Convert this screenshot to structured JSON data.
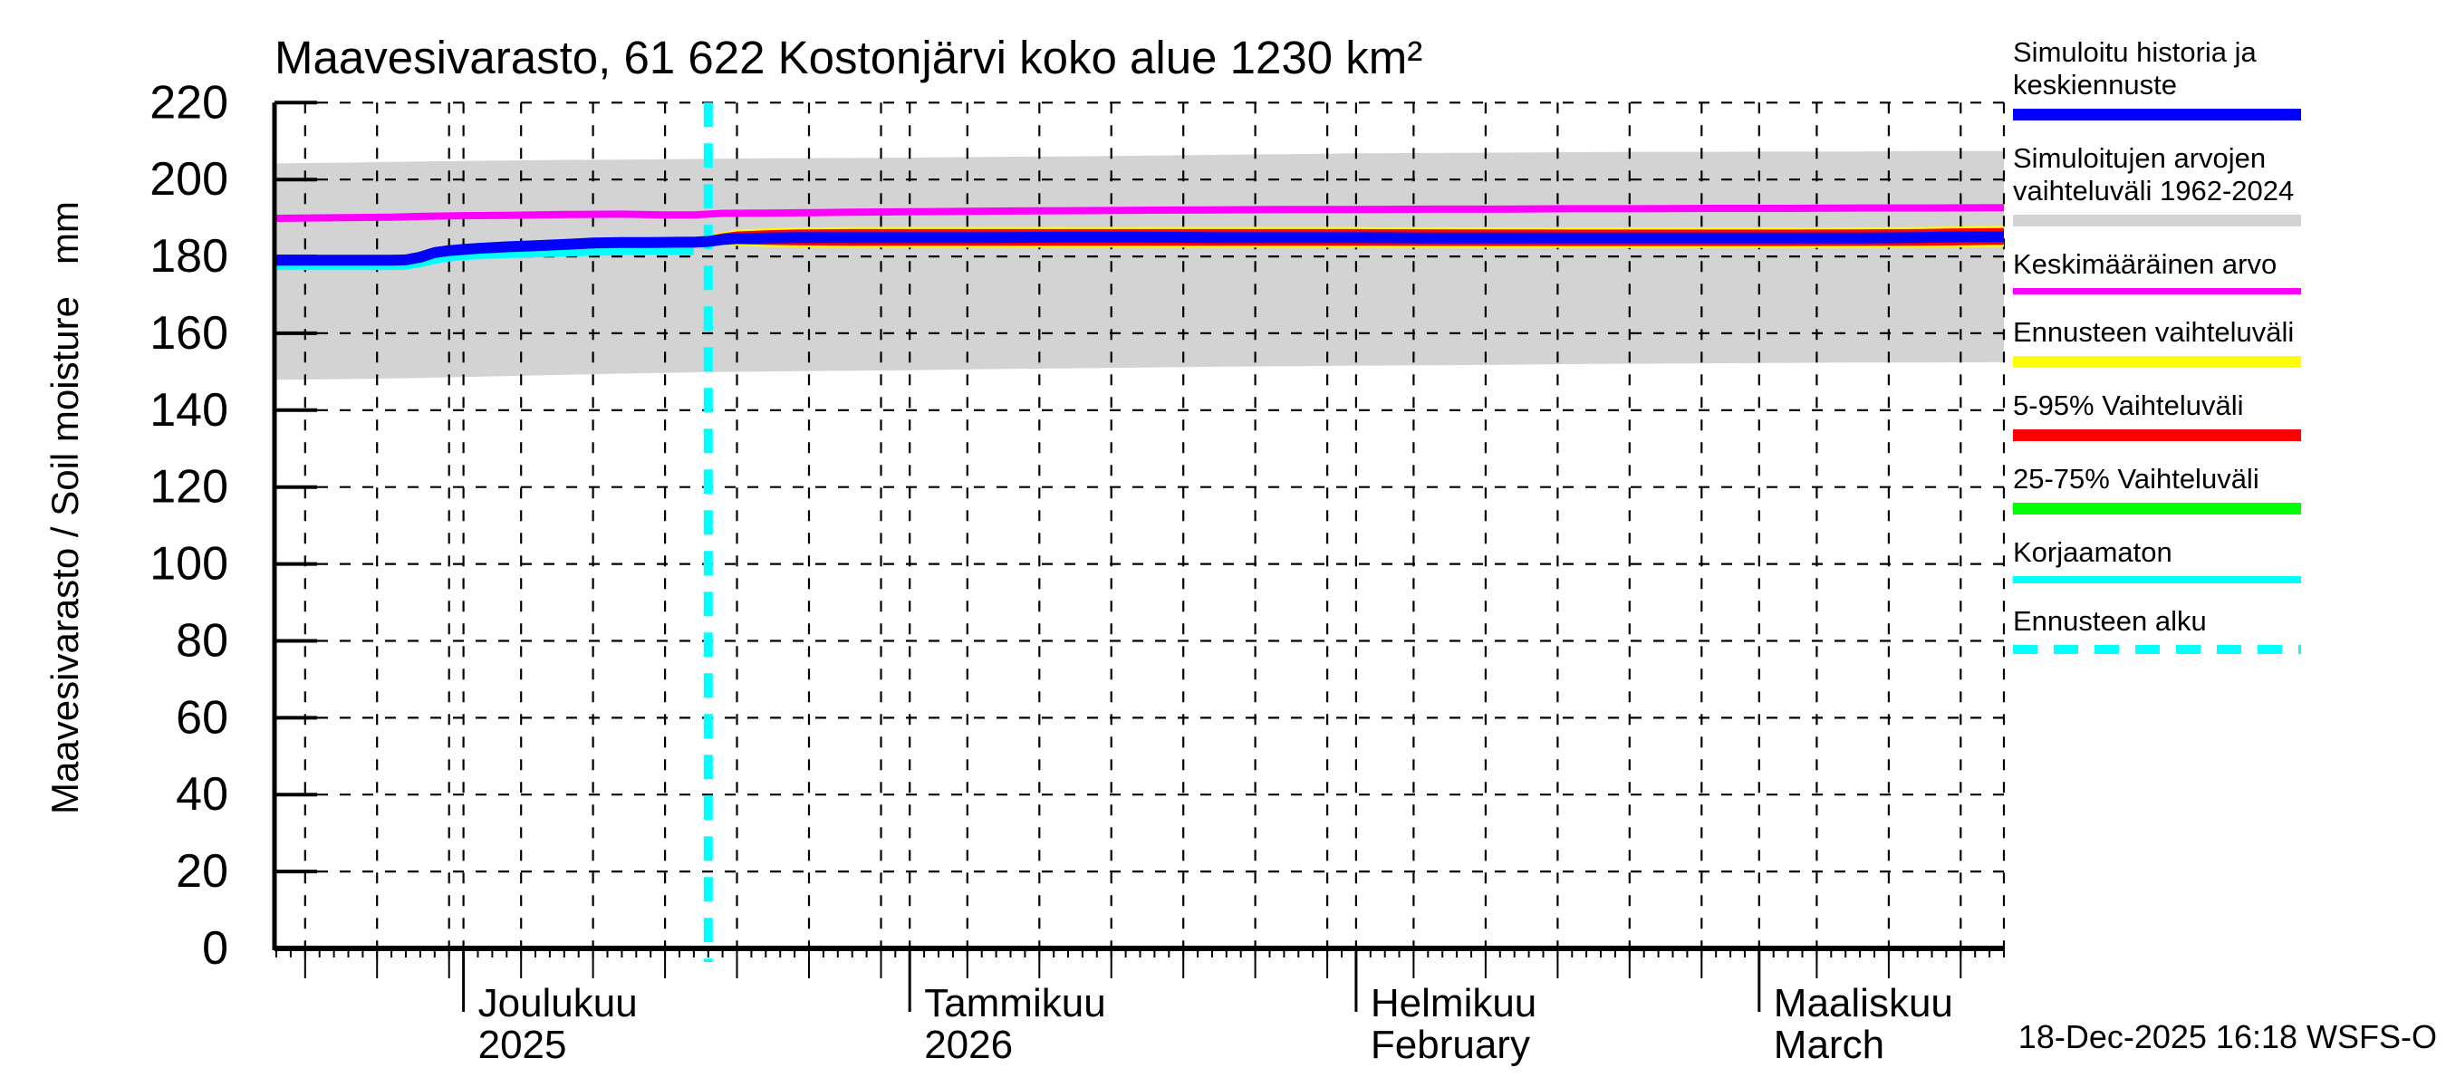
{
  "title": "Maavesivarasto, 61 622 Kostonjärvi koko alue 1230 km²",
  "y_axis_label": "Maavesivarasto / Soil moisture   mm",
  "footer": {
    "timestamp": "18-Dec-2025 16:18 WSFS-O"
  },
  "colors": {
    "background": "#ffffff",
    "axis": "#000000",
    "history_line": "#0000ff",
    "sim_range_band": "#d3d3d3",
    "mean_line": "#ff00ff",
    "forecast_range_band": "#ffff00",
    "p5_95_band": "#ff0000",
    "p25_75_band": "#00ff00",
    "uncorrected_line": "#00ffff",
    "forecast_start_line": "#00ffff"
  },
  "legend": {
    "items": [
      {
        "label": "Simuloitu historia ja keskiennuste",
        "color": "#0000ff",
        "style": "solid",
        "thickness": 13
      },
      {
        "label": "Simuloitujen arvojen vaihteluväli 1962-2024",
        "color": "#d3d3d3",
        "style": "solid",
        "thickness": 13
      },
      {
        "label": "Keskimääräinen arvo",
        "color": "#ff00ff",
        "style": "solid",
        "thickness": 7
      },
      {
        "label": "Ennusteen vaihteluväli",
        "color": "#ffff00",
        "style": "solid",
        "thickness": 13
      },
      {
        "label": "5-95% Vaihteluväli",
        "color": "#ff0000",
        "style": "solid",
        "thickness": 13
      },
      {
        "label": "25-75% Vaihteluväli",
        "color": "#00ff00",
        "style": "solid",
        "thickness": 13
      },
      {
        "label": "Korjaamaton",
        "color": "#00ffff",
        "style": "solid",
        "thickness": 8
      },
      {
        "label": "Ennusteen alku",
        "color": "#00ffff",
        "style": "dashed",
        "thickness": 10
      }
    ]
  },
  "chart_data": {
    "type": "line",
    "title": "Maavesivarasto, 61 622 Kostonjärvi koko alue 1230 km²",
    "ylabel": "Maavesivarasto / Soil moisture  mm",
    "xlabel": "",
    "ylim": [
      0,
      220
    ],
    "yticks": [
      0,
      20,
      40,
      60,
      80,
      100,
      120,
      140,
      160,
      180,
      200,
      220
    ],
    "grid": "dashed",
    "x_unit": "days since 2025-11-18",
    "x_total_days": 120,
    "x_start_date": "2025-11-18",
    "x_end_date": "2026-03-18",
    "forecast_start_day": 30,
    "forecast_start_date": "2025-12-18",
    "minor_tick_every_days": 1,
    "months": [
      {
        "label": "Joulukuu",
        "sublabel": "2025",
        "start_day": 13
      },
      {
        "label": "Tammikuu",
        "sublabel": "2026",
        "start_day": 44
      },
      {
        "label": "Helmikuu",
        "sublabel": "February",
        "start_day": 75
      },
      {
        "label": "Maaliskuu",
        "sublabel": "March",
        "start_day": 103
      }
    ],
    "grid_x_days": [
      2,
      7,
      12,
      13,
      17,
      22,
      27,
      32,
      37,
      42,
      44,
      48,
      53,
      58,
      63,
      68,
      73,
      75,
      79,
      84,
      89,
      94,
      99,
      103,
      107,
      112,
      117,
      120
    ],
    "bands": [
      {
        "name": "Simuloitujen arvojen vaihteluväli 1962-2024",
        "color": "#d3d3d3",
        "points": [
          [
            0,
            147.9,
            204.2
          ],
          [
            5,
            148.1,
            204.4
          ],
          [
            10,
            148.4,
            204.7
          ],
          [
            15,
            148.8,
            204.9
          ],
          [
            20,
            149.2,
            205.1
          ],
          [
            25,
            149.6,
            205.2
          ],
          [
            30,
            149.9,
            205.4
          ],
          [
            35,
            150.1,
            205.5
          ],
          [
            40,
            150.3,
            205.6
          ],
          [
            44,
            150.4,
            205.7
          ],
          [
            50,
            150.7,
            205.9
          ],
          [
            55,
            150.9,
            206.0
          ],
          [
            60,
            151.1,
            206.2
          ],
          [
            65,
            151.3,
            206.4
          ],
          [
            70,
            151.4,
            206.6
          ],
          [
            75,
            151.6,
            206.8
          ],
          [
            80,
            151.7,
            206.9
          ],
          [
            85,
            151.8,
            207.0
          ],
          [
            90,
            152.0,
            207.1
          ],
          [
            95,
            152.1,
            207.2
          ],
          [
            100,
            152.2,
            207.2
          ],
          [
            105,
            152.3,
            207.3
          ],
          [
            110,
            152.4,
            207.3
          ],
          [
            115,
            152.4,
            207.4
          ],
          [
            120,
            152.5,
            207.4
          ]
        ]
      },
      {
        "name": "Ennusteen vaihteluväli",
        "color": "#ffff00",
        "points": [
          [
            30,
            184.2,
            185.4
          ],
          [
            31,
            183.2,
            186.3
          ],
          [
            32,
            182.8,
            186.9
          ],
          [
            34,
            182.5,
            187.3
          ],
          [
            36,
            182.4,
            187.5
          ],
          [
            40,
            182.3,
            187.6
          ],
          [
            50,
            182.3,
            187.6
          ],
          [
            60,
            182.3,
            187.6
          ],
          [
            75,
            182.3,
            187.6
          ],
          [
            90,
            182.2,
            187.5
          ],
          [
            105,
            182.2,
            187.5
          ],
          [
            114,
            182.3,
            187.6
          ],
          [
            117,
            182.4,
            187.8
          ],
          [
            120,
            182.5,
            187.9
          ]
        ]
      },
      {
        "name": "5-95% Vaihteluväli",
        "color": "#ff0000",
        "points": [
          [
            30,
            184.3,
            185.3
          ],
          [
            31,
            183.5,
            186.0
          ],
          [
            32,
            183.2,
            186.5
          ],
          [
            34,
            183.0,
            186.8
          ],
          [
            36,
            182.9,
            187.0
          ],
          [
            40,
            182.8,
            187.1
          ],
          [
            50,
            182.8,
            187.1
          ],
          [
            60,
            182.8,
            187.1
          ],
          [
            75,
            182.8,
            187.1
          ],
          [
            90,
            182.7,
            187.0
          ],
          [
            105,
            182.7,
            187.0
          ],
          [
            114,
            182.8,
            187.1
          ],
          [
            117,
            182.9,
            187.3
          ],
          [
            120,
            183.0,
            187.4
          ]
        ]
      },
      {
        "name": "25-75% Vaihteluväli",
        "color": "#00ff00",
        "points": [
          [
            30,
            184.4,
            185.2
          ],
          [
            32,
            183.8,
            186.0
          ],
          [
            36,
            183.7,
            186.1
          ],
          [
            40,
            183.7,
            186.1
          ],
          [
            60,
            183.7,
            186.1
          ],
          [
            75,
            183.7,
            186.1
          ],
          [
            90,
            183.6,
            186.0
          ],
          [
            105,
            183.6,
            186.0
          ],
          [
            114,
            183.7,
            186.1
          ],
          [
            117,
            183.8,
            186.2
          ],
          [
            120,
            183.9,
            186.3
          ]
        ]
      }
    ],
    "series": [
      {
        "name": "Korjaamaton",
        "color": "#00ffff",
        "width": 8,
        "points": [
          [
            0,
            177.4
          ],
          [
            4,
            177.4
          ],
          [
            8,
            177.4
          ],
          [
            9,
            177.5
          ],
          [
            10,
            178.1
          ],
          [
            11,
            179.0
          ],
          [
            12,
            179.6
          ],
          [
            13,
            180.0
          ],
          [
            14,
            180.2
          ],
          [
            16,
            180.5
          ],
          [
            18,
            180.7
          ],
          [
            20,
            180.9
          ],
          [
            22,
            181.1
          ],
          [
            25,
            181.3
          ],
          [
            27,
            181.4
          ],
          [
            29,
            181.4
          ]
        ]
      },
      {
        "name": "Simuloitu historia ja keskiennuste",
        "color": "#0000ff",
        "width": 12,
        "points": [
          [
            0,
            179.0
          ],
          [
            4,
            179.0
          ],
          [
            8,
            179.0
          ],
          [
            9,
            179.1
          ],
          [
            10,
            179.8
          ],
          [
            11,
            181.0
          ],
          [
            12,
            181.5
          ],
          [
            13,
            181.8
          ],
          [
            14,
            182.1
          ],
          [
            16,
            182.5
          ],
          [
            18,
            182.8
          ],
          [
            20,
            183.1
          ],
          [
            21,
            183.3
          ],
          [
            22,
            183.5
          ],
          [
            24,
            183.6
          ],
          [
            26,
            183.6
          ],
          [
            28,
            183.7
          ],
          [
            29,
            183.7
          ],
          [
            30,
            183.9
          ],
          [
            31,
            184.4
          ],
          [
            32,
            184.6
          ],
          [
            34,
            184.8
          ],
          [
            36,
            184.9
          ],
          [
            40,
            184.9
          ],
          [
            44,
            184.9
          ],
          [
            50,
            184.9
          ],
          [
            55,
            185.0
          ],
          [
            60,
            185.0
          ],
          [
            65,
            184.9
          ],
          [
            70,
            184.9
          ],
          [
            75,
            184.9
          ],
          [
            80,
            184.8
          ],
          [
            85,
            184.8
          ],
          [
            90,
            184.8
          ],
          [
            95,
            184.8
          ],
          [
            100,
            184.8
          ],
          [
            105,
            184.8
          ],
          [
            110,
            184.8
          ],
          [
            114,
            184.9
          ],
          [
            117,
            185.1
          ],
          [
            120,
            185.1
          ]
        ]
      },
      {
        "name": "Keskimääräinen arvo",
        "color": "#ff00ff",
        "width": 8,
        "points": [
          [
            0,
            189.9
          ],
          [
            5,
            190.1
          ],
          [
            8,
            190.2
          ],
          [
            10,
            190.4
          ],
          [
            13,
            190.6
          ],
          [
            16,
            190.7
          ],
          [
            20,
            190.9
          ],
          [
            24,
            191.0
          ],
          [
            27,
            190.8
          ],
          [
            29,
            190.8
          ],
          [
            31,
            191.2
          ],
          [
            35,
            191.3
          ],
          [
            40,
            191.5
          ],
          [
            44,
            191.6
          ],
          [
            50,
            191.8
          ],
          [
            55,
            191.9
          ],
          [
            60,
            192.0
          ],
          [
            65,
            192.1
          ],
          [
            70,
            192.2
          ],
          [
            75,
            192.2
          ],
          [
            80,
            192.3
          ],
          [
            85,
            192.3
          ],
          [
            90,
            192.4
          ],
          [
            95,
            192.4
          ],
          [
            100,
            192.5
          ],
          [
            105,
            192.5
          ],
          [
            110,
            192.6
          ],
          [
            115,
            192.6
          ],
          [
            120,
            192.7
          ]
        ]
      }
    ]
  }
}
